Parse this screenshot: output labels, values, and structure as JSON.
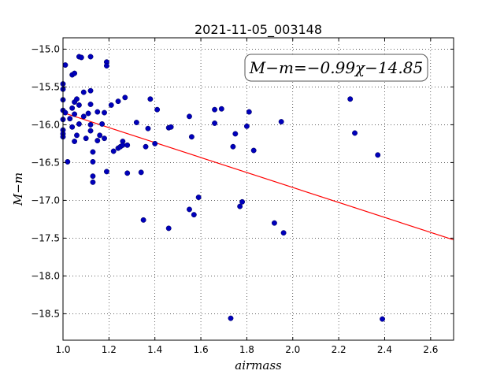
{
  "chart_data": {
    "type": "scatter",
    "title": "2021-11-05_003148",
    "xlabel": "airmass",
    "ylabel": "M−m",
    "xlim": [
      1.0,
      2.7
    ],
    "ylim": [
      -18.85,
      -14.85
    ],
    "y_inverted": true,
    "grid": true,
    "xticks": [
      1.0,
      1.2,
      1.4,
      1.6,
      1.8,
      2.0,
      2.2,
      2.4,
      2.6
    ],
    "xtick_labels": [
      "1.0",
      "1.2",
      "1.4",
      "1.6",
      "1.8",
      "2.0",
      "2.2",
      "2.4",
      "2.6"
    ],
    "yticks": [
      -15.0,
      -15.5,
      -16.0,
      -16.5,
      -17.0,
      -17.5,
      -18.0,
      -18.5
    ],
    "ytick_labels": [
      "−15.0",
      "−15.5",
      "−16.0",
      "−16.5",
      "−17.0",
      "−17.5",
      "−18.0",
      "−18.5"
    ],
    "annotation": "M−m=−0.99χ−14.85",
    "fit": {
      "slope": -0.99,
      "intercept": -14.85,
      "color": "#ff0000"
    },
    "point_color": "#0000bb",
    "series": [
      {
        "points": [
          [
            1.0,
            -15.46
          ],
          [
            1.0,
            -15.53
          ],
          [
            1.0,
            -15.67
          ],
          [
            1.0,
            -15.81
          ],
          [
            1.0,
            -15.93
          ],
          [
            1.0,
            -16.07
          ],
          [
            1.0,
            -16.12
          ],
          [
            1.0,
            -16.16
          ],
          [
            1.01,
            -15.21
          ],
          [
            1.01,
            -15.84
          ],
          [
            1.02,
            -16.49
          ],
          [
            1.03,
            -15.92
          ],
          [
            1.04,
            -15.34
          ],
          [
            1.04,
            -15.78
          ],
          [
            1.04,
            -16.03
          ],
          [
            1.05,
            -15.32
          ],
          [
            1.05,
            -15.7
          ],
          [
            1.05,
            -15.86
          ],
          [
            1.05,
            -16.22
          ],
          [
            1.06,
            -15.66
          ],
          [
            1.06,
            -16.14
          ],
          [
            1.07,
            -15.1
          ],
          [
            1.07,
            -15.74
          ],
          [
            1.07,
            -15.99
          ],
          [
            1.08,
            -15.11
          ],
          [
            1.09,
            -15.57
          ],
          [
            1.09,
            -15.89
          ],
          [
            1.1,
            -16.18
          ],
          [
            1.11,
            -15.85
          ],
          [
            1.12,
            -15.1
          ],
          [
            1.12,
            -15.55
          ],
          [
            1.12,
            -15.73
          ],
          [
            1.12,
            -16.0
          ],
          [
            1.12,
            -16.08
          ],
          [
            1.13,
            -16.36
          ],
          [
            1.13,
            -16.49
          ],
          [
            1.13,
            -16.68
          ],
          [
            1.13,
            -16.76
          ],
          [
            1.15,
            -15.83
          ],
          [
            1.15,
            -16.21
          ],
          [
            1.16,
            -16.14
          ],
          [
            1.17,
            -15.99
          ],
          [
            1.18,
            -15.84
          ],
          [
            1.18,
            -16.18
          ],
          [
            1.19,
            -15.17
          ],
          [
            1.19,
            -15.22
          ],
          [
            1.19,
            -16.62
          ],
          [
            1.21,
            -15.74
          ],
          [
            1.22,
            -16.35
          ],
          [
            1.24,
            -15.69
          ],
          [
            1.24,
            -16.31
          ],
          [
            1.25,
            -16.29
          ],
          [
            1.26,
            -16.22
          ],
          [
            1.26,
            -16.27
          ],
          [
            1.27,
            -15.64
          ],
          [
            1.28,
            -16.27
          ],
          [
            1.28,
            -16.64
          ],
          [
            1.32,
            -15.97
          ],
          [
            1.34,
            -16.63
          ],
          [
            1.35,
            -17.26
          ],
          [
            1.36,
            -16.29
          ],
          [
            1.37,
            -16.05
          ],
          [
            1.38,
            -15.66
          ],
          [
            1.4,
            -16.25
          ],
          [
            1.41,
            -15.8
          ],
          [
            1.46,
            -16.04
          ],
          [
            1.46,
            -17.37
          ],
          [
            1.47,
            -16.03
          ],
          [
            1.55,
            -15.89
          ],
          [
            1.55,
            -17.12
          ],
          [
            1.56,
            -16.16
          ],
          [
            1.57,
            -17.19
          ],
          [
            1.59,
            -16.96
          ],
          [
            1.66,
            -15.8
          ],
          [
            1.66,
            -15.98
          ],
          [
            1.69,
            -15.79
          ],
          [
            1.73,
            -18.56
          ],
          [
            1.74,
            -16.29
          ],
          [
            1.75,
            -16.12
          ],
          [
            1.77,
            -17.08
          ],
          [
            1.78,
            -17.02
          ],
          [
            1.8,
            -16.02
          ],
          [
            1.81,
            -15.83
          ],
          [
            1.83,
            -16.34
          ],
          [
            1.92,
            -17.3
          ],
          [
            1.95,
            -15.96
          ],
          [
            1.96,
            -17.43
          ],
          [
            2.25,
            -15.66
          ],
          [
            2.27,
            -16.11
          ],
          [
            2.37,
            -16.4
          ],
          [
            2.39,
            -18.57
          ]
        ]
      }
    ]
  }
}
